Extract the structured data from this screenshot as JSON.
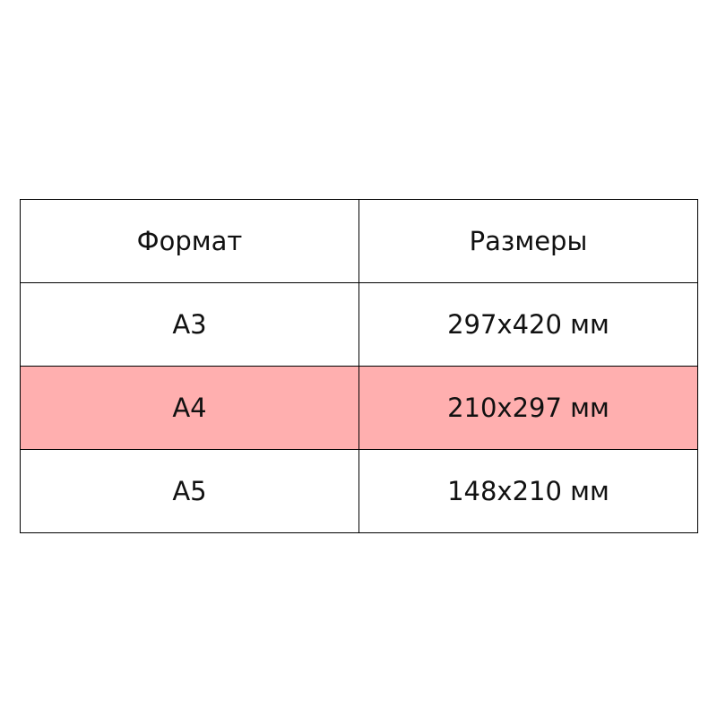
{
  "table": {
    "headers": [
      "Формат",
      "Размеры"
    ],
    "rows": [
      [
        "A3",
        "297x420 мм"
      ],
      [
        "A4",
        "210x297 мм"
      ],
      [
        "A5",
        "148x210 мм"
      ]
    ],
    "highlighted_row": 1,
    "highlight_color": "#ffafaf"
  }
}
